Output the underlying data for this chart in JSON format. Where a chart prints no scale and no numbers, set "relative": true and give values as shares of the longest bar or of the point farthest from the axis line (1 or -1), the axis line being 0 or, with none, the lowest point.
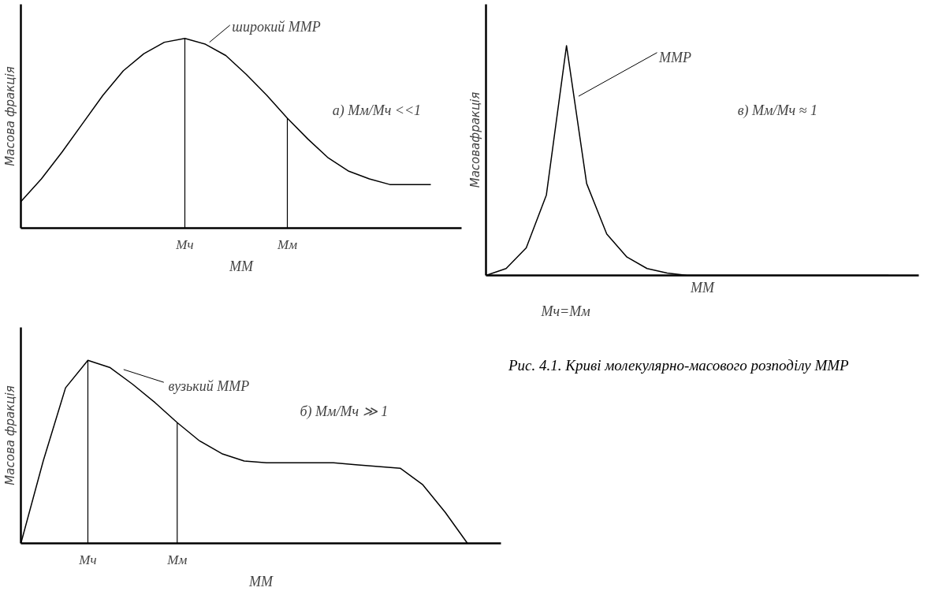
{
  "chart_data": [
    {
      "type": "line",
      "relative": true,
      "xlabel": "ММ",
      "ylabel": "Масова фракція",
      "categories": [
        null,
        null,
        null,
        null,
        null,
        null,
        null,
        null,
        "Мч",
        null,
        null,
        null,
        null,
        "Мм",
        null,
        null,
        null,
        null,
        null,
        null,
        null
      ],
      "values": [
        0.14,
        0.26,
        0.4,
        0.55,
        0.7,
        0.83,
        0.92,
        0.98,
        1.0,
        0.97,
        0.91,
        0.81,
        0.7,
        0.58,
        0.47,
        0.37,
        0.3,
        0.26,
        0.23,
        0.23,
        0.23
      ],
      "ref_lines": [
        {
          "axis": "x",
          "value": "Мч"
        },
        {
          "axis": "x",
          "value": "Мм"
        }
      ],
      "annotations": [
        "широкий ММР",
        "а) Мм/Мч <<1"
      ]
    },
    {
      "type": "line",
      "relative": true,
      "color": "#000000",
      "xlabel": "ММ",
      "ylabel": "Масовафракція",
      "categories": [
        null,
        null,
        null,
        null,
        null,
        null,
        null,
        null,
        null,
        null,
        null,
        null,
        null,
        null,
        null,
        null,
        null,
        null,
        null,
        null,
        null
      ],
      "values": [
        0,
        0.03,
        0.12,
        0.35,
        1.0,
        0.4,
        0.18,
        0.08,
        0.03,
        0.01,
        0,
        0,
        0,
        0,
        0,
        0,
        0,
        0,
        0,
        0,
        0
      ],
      "annotations": [
        "ММР",
        "в) Мм/Мч ≈ 1",
        "Мч=Мм"
      ]
    },
    {
      "type": "line",
      "relative": true,
      "xlabel": "ММ",
      "ylabel": "Масова фракція",
      "categories": [
        null,
        null,
        null,
        "Мч",
        null,
        null,
        null,
        "Мм",
        null,
        null,
        null,
        null,
        null,
        null,
        null,
        null,
        null,
        null,
        null,
        null,
        null
      ],
      "values": [
        0,
        0.45,
        0.85,
        1.0,
        0.96,
        0.87,
        0.77,
        0.66,
        0.56,
        0.49,
        0.45,
        0.44,
        0.44,
        0.44,
        0.44,
        0.43,
        0.42,
        0.41,
        0.32,
        0.17,
        0
      ],
      "ref_lines": [
        {
          "axis": "x",
          "value": "Мч"
        },
        {
          "axis": "x",
          "value": "Мм"
        }
      ],
      "annotations": [
        "вузький ММР",
        "б) Мм/Мч ≫ 1",
        "Рис. 4.1. Криві молекулярно-масового розподілу ММР"
      ]
    }
  ]
}
